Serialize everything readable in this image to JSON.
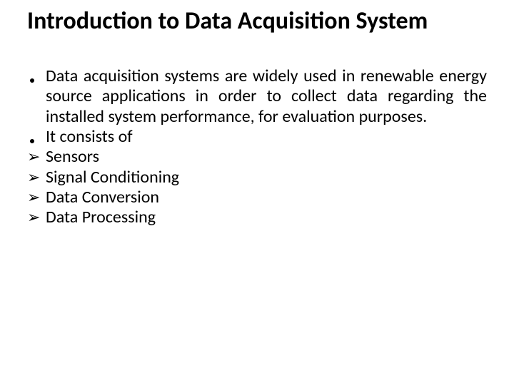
{
  "background_color": "#ffffff",
  "text_color": "#000000",
  "title": {
    "text": "Introduction to Data Acquisition System",
    "fontsize": 34,
    "fontweight": 700
  },
  "body_fontsize": 24,
  "bullets": [
    {
      "marker": "dot",
      "text": "Data acquisition systems are widely used in renewable energy source applications in order to collect data regarding the installed system performance, for evaluation purposes.",
      "justify": true
    },
    {
      "marker": "dot",
      "text": "It consists of",
      "justify": false
    }
  ],
  "sub_items": [
    {
      "marker": "➢",
      "text": "Sensors"
    },
    {
      "marker": "➢",
      "text": "Signal Conditioning"
    },
    {
      "marker": "➢",
      "text": "Data Conversion"
    },
    {
      "marker": "➢",
      "text": "Data Processing"
    }
  ]
}
